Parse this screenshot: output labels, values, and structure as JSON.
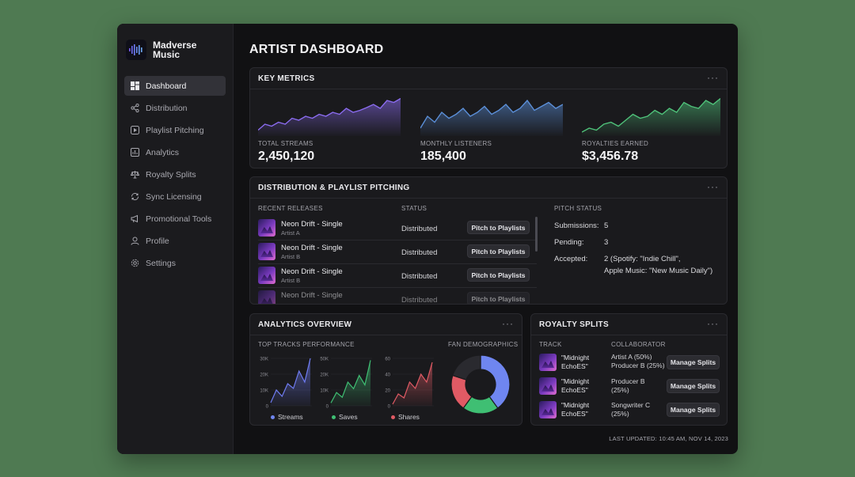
{
  "brand": {
    "name": "Madverse Music"
  },
  "sidebar": {
    "items": [
      {
        "label": "Dashboard",
        "icon": "dashboard-icon",
        "active": true
      },
      {
        "label": "Distribution",
        "icon": "share-icon"
      },
      {
        "label": "Playlist Pitching",
        "icon": "play-square-icon"
      },
      {
        "label": "Analytics",
        "icon": "bar-chart-icon"
      },
      {
        "label": "Royalty Splits",
        "icon": "scale-icon"
      },
      {
        "label": "Sync Licensing",
        "icon": "sync-icon"
      },
      {
        "label": "Promotional Tools",
        "icon": "megaphone-icon"
      },
      {
        "label": "Profile",
        "icon": "user-icon"
      },
      {
        "label": "Settings",
        "icon": "gear-icon"
      }
    ]
  },
  "page": {
    "title": "ARTIST DASHBOARD"
  },
  "key_metrics": {
    "title": "KEY METRICS",
    "menu": "···",
    "metrics": [
      {
        "label": "TOTAL STREAMS",
        "value": "2,450,120",
        "color": "#8b6cf0"
      },
      {
        "label": "MONTHLY LISTENERS",
        "value": "185,400",
        "color": "#5b8fd8"
      },
      {
        "label": "ROYALTIES EARNED",
        "value": "$3,456.78",
        "color": "#4fc27a"
      }
    ]
  },
  "distribution": {
    "title": "DISTRIBUTION & PLAYLIST PITCHING",
    "menu": "···",
    "col_releases": "RECENT RELEASES",
    "col_status": "STATUS",
    "releases": [
      {
        "name": "Neon Drift - Single",
        "artist": "Artist A",
        "status": "Distributed",
        "action": "Pitch to Playlists"
      },
      {
        "name": "Neon Drift - Single",
        "artist": "Artist B",
        "status": "Distributed",
        "action": "Pitch to Playlists"
      },
      {
        "name": "Neon Drift - Single",
        "artist": "Artist B",
        "status": "Distributed",
        "action": "Pitch to Playlists"
      },
      {
        "name": "Neon Drift - Single",
        "artist": "",
        "status": "Distributed",
        "action": "Pitch to Playlists"
      }
    ],
    "pitch_status": {
      "title": "PITCH STATUS",
      "submissions_label": "Submissions:",
      "submissions_value": "5",
      "pending_label": "Pending:",
      "pending_value": "3",
      "accepted_label": "Accepted:",
      "accepted_value_line1": "2 (Spotify: \"Indie Chill\",",
      "accepted_value_line2": "Apple Music: \"New Music Daily\")"
    }
  },
  "analytics": {
    "title": "ANALYTICS OVERVIEW",
    "menu": "···",
    "top_tracks_label": "TOP TRACKS PERFORMANCE",
    "fan_demo_label": "FAN DEMOGRAPHICS"
  },
  "chart_data": [
    {
      "type": "area",
      "title": "",
      "series": [
        {
          "name": "Streams",
          "values": [
            2,
            10,
            6,
            14,
            11,
            22,
            15,
            30
          ]
        }
      ],
      "ylim": [
        0,
        30
      ],
      "yticks": [
        "30K",
        "20K",
        "10K",
        "0"
      ],
      "color": "#6f7cf2"
    },
    {
      "type": "area",
      "title": "",
      "series": [
        {
          "name": "Saves",
          "values": [
            3,
            14,
            9,
            25,
            18,
            32,
            22,
            48
          ]
        }
      ],
      "ylim": [
        0,
        50
      ],
      "yticks": [
        "50K",
        "20K",
        "10K",
        "0"
      ],
      "color": "#3fbf73"
    },
    {
      "type": "area",
      "title": "",
      "series": [
        {
          "name": "Shares",
          "values": [
            2,
            15,
            10,
            30,
            22,
            40,
            30,
            55
          ]
        }
      ],
      "ylim": [
        0,
        60
      ],
      "yticks": [
        "60",
        "40",
        "20",
        "0"
      ],
      "color": "#e05a64"
    },
    {
      "type": "pie",
      "title": "",
      "values": [
        40,
        20,
        20,
        20
      ],
      "colors": [
        "#6f86f0",
        "#3fbf73",
        "#e05a64",
        "#2a2a2f"
      ]
    }
  ],
  "royalty_splits": {
    "title": "ROYALTY SPLITS",
    "menu": "···",
    "col_track": "TRACK",
    "col_collab": "COLLABORATOR",
    "rows": [
      {
        "track_l1": "\"Midnight",
        "track_l2": "EchoES\"",
        "collab_l1": "Artist A (50%)",
        "collab_l2": "Producer B (25%)",
        "action": "Manage Splits"
      },
      {
        "track_l1": "\"Midnight",
        "track_l2": "EchoES\"",
        "collab_l1": "Producer B",
        "collab_l2": "(25%)",
        "action": "Manage Splits"
      },
      {
        "track_l1": "\"Midnight",
        "track_l2": "EchoES\"",
        "collab_l1": "Songwriter C",
        "collab_l2": "(25%)",
        "action": "Manage Splits"
      }
    ]
  },
  "footer": {
    "last_updated": "LAST UPDATED: 10:45 AM, NOV 14, 2023"
  }
}
